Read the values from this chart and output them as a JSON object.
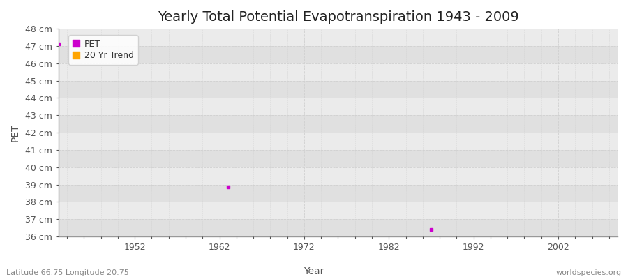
{
  "title": "Yearly Total Potential Evapotranspiration 1943 - 2009",
  "ylabel": "PET",
  "xlabel_text": "Year",
  "plot_bg_color": "#ebebeb",
  "fig_bg_color": "#ffffff",
  "ylim": [
    36,
    48
  ],
  "xlim": [
    1943,
    2009
  ],
  "yticks": [
    36,
    37,
    38,
    39,
    40,
    41,
    42,
    43,
    44,
    45,
    46,
    47,
    48
  ],
  "ytick_labels": [
    "36 cm",
    "37 cm",
    "38 cm",
    "39 cm",
    "40 cm",
    "41 cm",
    "42 cm",
    "43 cm",
    "44 cm",
    "45 cm",
    "46 cm",
    "47 cm",
    "48 cm"
  ],
  "xticks": [
    1952,
    1962,
    1972,
    1982,
    1992,
    2002
  ],
  "pet_color": "#cc00cc",
  "trend_color": "#ffa500",
  "pet_points": [
    [
      1943,
      47.1
    ],
    [
      1963,
      38.85
    ],
    [
      1987,
      36.4
    ]
  ],
  "trend_points": [],
  "subtitle": "Latitude 66.75 Longitude 20.75",
  "watermark": "worldspecies.org",
  "grid_color": "#d0d0d0",
  "stripe_color_dark": "#e0e0e0",
  "stripe_color_light": "#ebebeb",
  "spine_color": "#999999",
  "tick_label_color": "#555555",
  "title_fontsize": 14,
  "axis_label_fontsize": 10,
  "tick_fontsize": 9,
  "legend_fontsize": 9,
  "legend_label_color": "#333333"
}
